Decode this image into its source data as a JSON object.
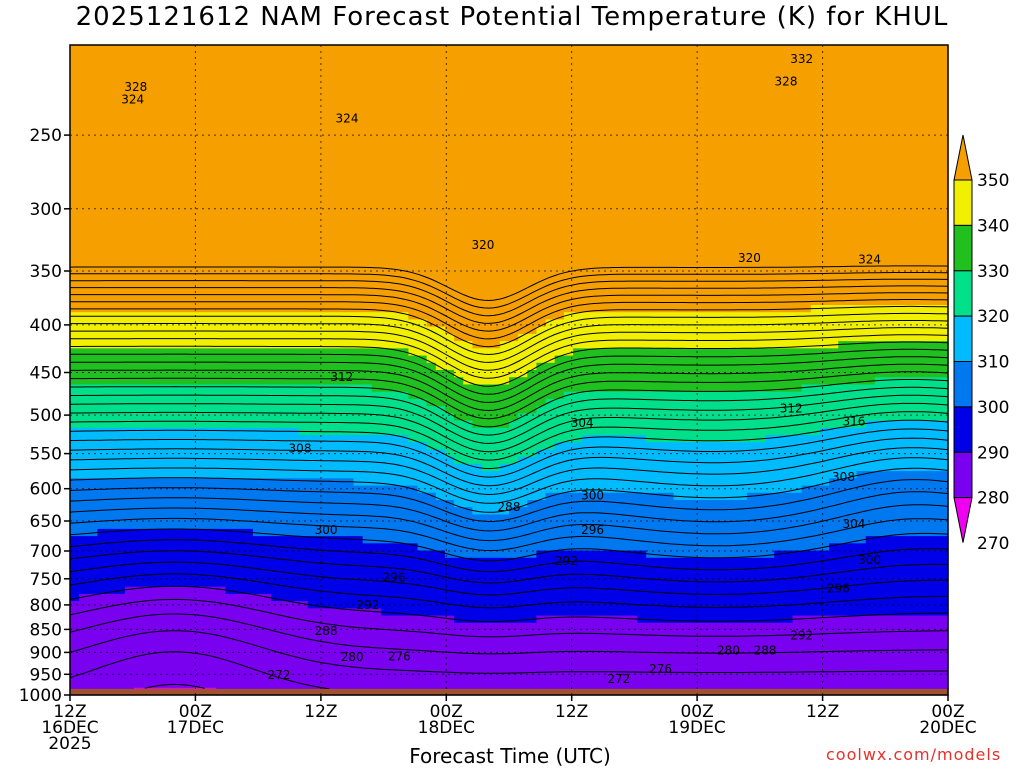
{
  "title": "2025121612 NAM Forecast Potential Temperature (K) for KHUL",
  "xlabel": "Forecast Time (UTC)",
  "credit": "coolwx.com/models",
  "chart_data": {
    "type": "heatmap",
    "title": "2025121612 NAM Forecast Potential Temperature (K) for KHUL",
    "xlabel": "Forecast Time (UTC)",
    "ylabel": "",
    "y_scale": "log-pressure (hPa, inverted)",
    "ylim": [
      1000,
      200
    ],
    "y_ticks": [
      "250",
      "300",
      "350",
      "400",
      "450",
      "500",
      "550",
      "600",
      "650",
      "700",
      "750",
      "800",
      "850",
      "900",
      "950",
      "1000"
    ],
    "y_tick_values": [
      250,
      300,
      350,
      400,
      450,
      500,
      550,
      600,
      650,
      700,
      750,
      800,
      850,
      900,
      950,
      1000
    ],
    "x_ticks": [
      {
        "hour": 0,
        "line1": "12Z",
        "line2": "16DEC",
        "line3": "2025"
      },
      {
        "hour": 12,
        "line1": "00Z",
        "line2": "17DEC",
        "line3": ""
      },
      {
        "hour": 24,
        "line1": "12Z",
        "line2": "",
        "line3": ""
      },
      {
        "hour": 36,
        "line1": "00Z",
        "line2": "18DEC",
        "line3": ""
      },
      {
        "hour": 48,
        "line1": "12Z",
        "line2": "",
        "line3": ""
      },
      {
        "hour": 60,
        "line1": "00Z",
        "line2": "19DEC",
        "line3": ""
      },
      {
        "hour": 72,
        "line1": "12Z",
        "line2": "",
        "line3": ""
      },
      {
        "hour": 84,
        "line1": "00Z",
        "line2": "20DEC",
        "line3": ""
      }
    ],
    "xlim_hours": [
      0,
      84
    ],
    "grid": true,
    "colorbar": {
      "ticks": [
        "350",
        "340",
        "330",
        "320",
        "310",
        "300",
        "290",
        "280",
        "270"
      ],
      "bins": [
        {
          "lo": 340,
          "hi": 350,
          "color": "#f5a000"
        },
        {
          "lo": 330,
          "hi": 340,
          "color": "#f0f000"
        },
        {
          "lo": 320,
          "hi": 330,
          "color": "#20c020"
        },
        {
          "lo": 310,
          "hi": 320,
          "color": "#00e08a"
        },
        {
          "lo": 300,
          "hi": 310,
          "color": "#00bcff"
        },
        {
          "lo": 290,
          "hi": 300,
          "color": "#0078f0"
        },
        {
          "lo": 280,
          "hi": 290,
          "color": "#0000e8"
        },
        {
          "lo": 270,
          "hi": 280,
          "color": "#7a00f0"
        },
        {
          "lo": 260,
          "hi": 270,
          "color": "#f000f0"
        }
      ]
    },
    "ground_color": "#a0522d",
    "contour_interval_K": 2,
    "contour_labels": [
      {
        "text": "332",
        "hour": 70.0,
        "p": 207
      },
      {
        "text": "328",
        "hour": 6.3,
        "p": 222
      },
      {
        "text": "328",
        "hour": 68.5,
        "p": 219
      },
      {
        "text": "324",
        "hour": 6.0,
        "p": 229
      },
      {
        "text": "324",
        "hour": 26.5,
        "p": 240
      },
      {
        "text": "320",
        "hour": 39.5,
        "p": 328
      },
      {
        "text": "320",
        "hour": 65.0,
        "p": 339
      },
      {
        "text": "324",
        "hour": 76.5,
        "p": 340
      },
      {
        "text": "312",
        "hour": 26.0,
        "p": 455
      },
      {
        "text": "304",
        "hour": 49.0,
        "p": 510
      },
      {
        "text": "312",
        "hour": 69.0,
        "p": 492
      },
      {
        "text": "316",
        "hour": 75.0,
        "p": 508
      },
      {
        "text": "308",
        "hour": 22.0,
        "p": 543
      },
      {
        "text": "308",
        "hour": 74.0,
        "p": 583
      },
      {
        "text": "300",
        "hour": 50.0,
        "p": 610
      },
      {
        "text": "288",
        "hour": 42.0,
        "p": 628
      },
      {
        "text": "300",
        "hour": 24.5,
        "p": 665
      },
      {
        "text": "304",
        "hour": 75.0,
        "p": 655
      },
      {
        "text": "296",
        "hour": 50.0,
        "p": 665
      },
      {
        "text": "292",
        "hour": 47.5,
        "p": 718
      },
      {
        "text": "300",
        "hour": 76.5,
        "p": 716
      },
      {
        "text": "296",
        "hour": 31.0,
        "p": 748
      },
      {
        "text": "296",
        "hour": 73.5,
        "p": 768
      },
      {
        "text": "292",
        "hour": 28.5,
        "p": 800
      },
      {
        "text": "288",
        "hour": 24.5,
        "p": 853
      },
      {
        "text": "292",
        "hour": 70.0,
        "p": 863
      },
      {
        "text": "280",
        "hour": 63.0,
        "p": 896
      },
      {
        "text": "288",
        "hour": 66.5,
        "p": 896
      },
      {
        "text": "280",
        "hour": 27.0,
        "p": 910
      },
      {
        "text": "276",
        "hour": 31.5,
        "p": 909
      },
      {
        "text": "276",
        "hour": 56.5,
        "p": 938
      },
      {
        "text": "272",
        "hour": 20.0,
        "p": 952
      },
      {
        "text": "272",
        "hour": 52.5,
        "p": 961
      }
    ]
  }
}
